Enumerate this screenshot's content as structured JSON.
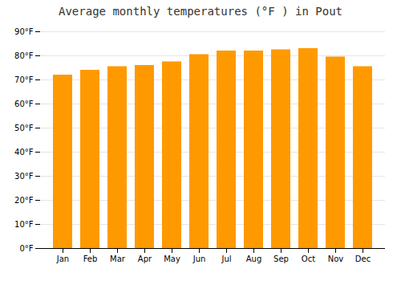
{
  "chart_data": {
    "type": "bar",
    "title": "Average monthly temperatures (°F ) in Pout",
    "categories": [
      "Jan",
      "Feb",
      "Mar",
      "Apr",
      "May",
      "Jun",
      "Jul",
      "Aug",
      "Sep",
      "Oct",
      "Nov",
      "Dec"
    ],
    "values": [
      72,
      74,
      75.5,
      76,
      77.5,
      80.5,
      82,
      82,
      82.5,
      83,
      79.5,
      75.5
    ],
    "color": "#FF9900",
    "ylim": [
      0,
      90
    ],
    "yticks": [
      {
        "value": 0,
        "label": "0°F"
      },
      {
        "value": 10,
        "label": "10°F"
      },
      {
        "value": 20,
        "label": "20°F"
      },
      {
        "value": 30,
        "label": "30°F"
      },
      {
        "value": 40,
        "label": "40°F"
      },
      {
        "value": 50,
        "label": "50°F"
      },
      {
        "value": 60,
        "label": "60°F"
      },
      {
        "value": 70,
        "label": "70°F"
      },
      {
        "value": 80,
        "label": "80°F"
      },
      {
        "value": 90,
        "label": "90°F"
      }
    ],
    "grid": true
  }
}
